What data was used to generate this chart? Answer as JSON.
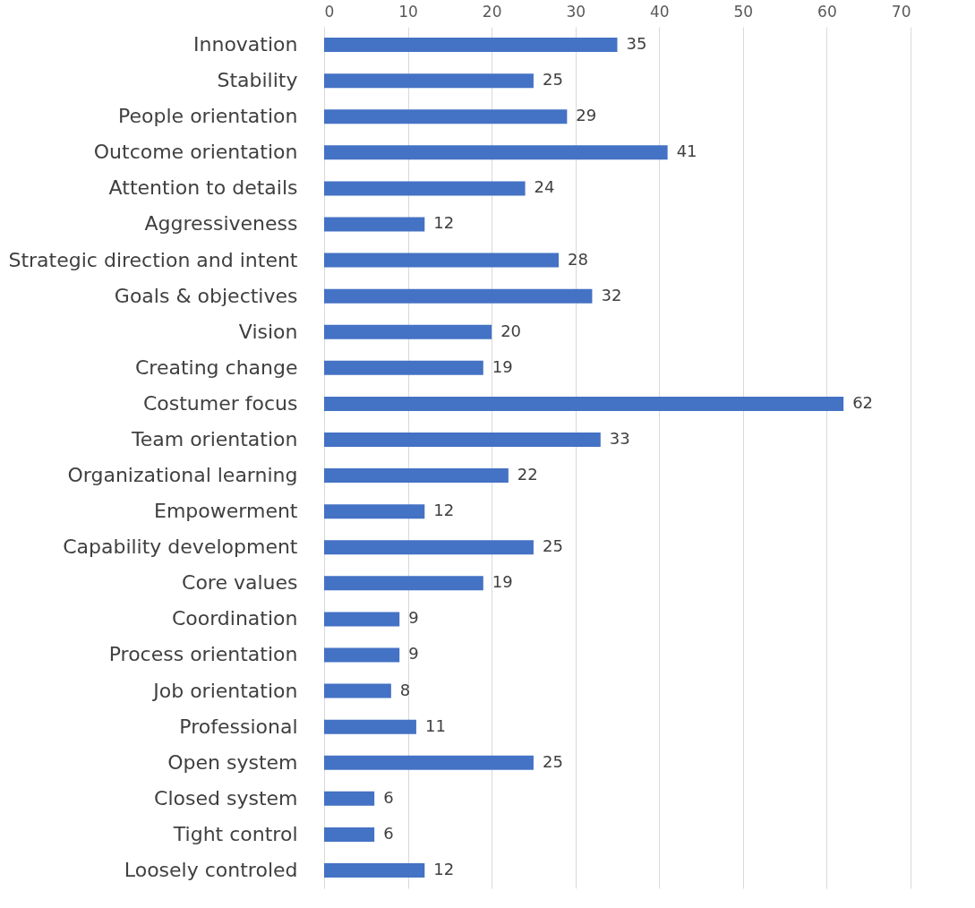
{
  "chart_data": {
    "type": "bar",
    "orientation": "horizontal",
    "categories": [
      "Innovation",
      "Stability",
      "People orientation",
      "Outcome orientation",
      "Attention to details",
      "Aggressiveness",
      "Strategic direction and intent",
      "Goals & objectives",
      "Vision",
      "Creating change",
      "Costumer focus",
      "Team orientation",
      "Organizational learning",
      "Empowerment",
      "Capability development",
      "Core values",
      "Coordination",
      "Process orientation",
      "Job orientation",
      "Professional",
      "Open system",
      "Closed system",
      "Tight control",
      "Loosely controled"
    ],
    "values": [
      35,
      25,
      29,
      41,
      24,
      12,
      28,
      32,
      20,
      19,
      62,
      33,
      22,
      12,
      25,
      19,
      9,
      9,
      8,
      11,
      25,
      6,
      6,
      12
    ],
    "color": "#4472c4",
    "xlim": [
      0,
      70
    ],
    "xticks": [
      0,
      10,
      20,
      30,
      40,
      50,
      60,
      70
    ],
    "grid": "x",
    "data_labels": true
  }
}
